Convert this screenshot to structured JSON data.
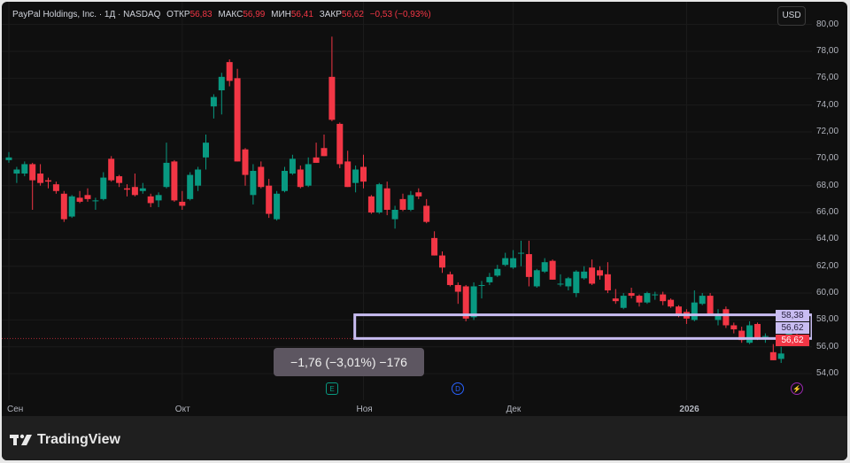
{
  "header": {
    "symbol": "PayPal Holdings, Inc. · 1Д · NASDAQ",
    "open_label": "ОТКР",
    "open": "56,83",
    "high_label": "МАКС",
    "high": "56,99",
    "low_label": "МИН",
    "low": "56,41",
    "close_label": "ЗАКР",
    "close": "56,62",
    "change": "−0,53 (−0,93%)"
  },
  "currency_button": "USD",
  "measure_tooltip": "−1,76 (−3,01%) −176",
  "price_labels": {
    "range_top": "58,38",
    "range_bottom": "56,62",
    "last_price": "56,62"
  },
  "events": [
    {
      "icon": "earnings-icon",
      "glyph": "E",
      "color": "#089981"
    },
    {
      "icon": "dividend-icon",
      "glyph": "D",
      "color": "#2962ff"
    },
    {
      "icon": "lightning-icon",
      "glyph": "⚡",
      "color": "#9c27b0"
    }
  ],
  "branding": "TradingView",
  "chart_data": {
    "type": "candlestick",
    "title": "PayPal Holdings, Inc. · 1Д · NASDAQ",
    "colors": {
      "up": "#089981",
      "down": "#f23645",
      "range_box": "#c9bdf2",
      "last_price_line": "#f23645"
    },
    "y_ticks": [
      "54,00",
      "56,00",
      "58,00",
      "60,00",
      "62,00",
      "64,00",
      "66,00",
      "68,00",
      "70,00",
      "72,00",
      "74,00",
      "76,00",
      "78,00",
      "80,00"
    ],
    "ylim": [
      53,
      80.5
    ],
    "x_ticks": [
      {
        "label": "Сен",
        "bar_index": 0
      },
      {
        "label": "Окт",
        "bar_index": 22
      },
      {
        "label": "Ноя",
        "bar_index": 45
      },
      {
        "label": "Дек",
        "bar_index": 64
      },
      {
        "label": "2026",
        "bar_index": 86
      }
    ],
    "range_box": {
      "from_bar": 43,
      "top": 58.38,
      "bottom": 56.62
    },
    "last_price": 56.62,
    "grid": true,
    "ohlc": [
      [
        69.9,
        70.5,
        69.7,
        70.1
      ],
      [
        68.9,
        69.4,
        68.2,
        69.2
      ],
      [
        68.9,
        69.8,
        68.7,
        69.6
      ],
      [
        69.6,
        69.7,
        66.2,
        68.4
      ],
      [
        68.9,
        69.6,
        68.0,
        68.2
      ],
      [
        68.4,
        68.6,
        67.8,
        68.3
      ],
      [
        68.1,
        68.3,
        67.4,
        67.6
      ],
      [
        67.4,
        67.6,
        65.3,
        65.5
      ],
      [
        65.7,
        67.3,
        65.6,
        67.2
      ],
      [
        67.1,
        67.6,
        66.7,
        66.8
      ],
      [
        67.3,
        67.8,
        66.8,
        67.0
      ],
      [
        66.9,
        67.1,
        66.2,
        66.9
      ],
      [
        67.0,
        69.0,
        66.9,
        68.6
      ],
      [
        70.0,
        70.2,
        68.3,
        68.4
      ],
      [
        68.7,
        68.8,
        67.9,
        68.2
      ],
      [
        67.8,
        68.1,
        67.2,
        67.7
      ],
      [
        67.9,
        68.9,
        67.2,
        67.3
      ],
      [
        67.6,
        68.2,
        67.4,
        67.8
      ],
      [
        67.2,
        67.4,
        66.4,
        66.7
      ],
      [
        66.9,
        67.5,
        66.4,
        67.3
      ],
      [
        67.9,
        71.2,
        67.8,
        69.7
      ],
      [
        69.8,
        69.9,
        66.8,
        66.9
      ],
      [
        66.8,
        67.6,
        66.2,
        66.5
      ],
      [
        67.0,
        69.0,
        66.9,
        68.8
      ],
      [
        68.0,
        69.4,
        67.6,
        69.2
      ],
      [
        70.1,
        71.8,
        69.2,
        71.2
      ],
      [
        73.9,
        74.8,
        73.0,
        74.6
      ],
      [
        75.1,
        76.4,
        73.3,
        76.1
      ],
      [
        77.2,
        77.4,
        75.4,
        75.8
      ],
      [
        76.0,
        76.7,
        69.8,
        69.8
      ],
      [
        70.7,
        70.8,
        68.0,
        68.8
      ],
      [
        67.3,
        69.6,
        66.6,
        69.1
      ],
      [
        69.4,
        69.8,
        67.8,
        67.9
      ],
      [
        68.0,
        68.5,
        65.6,
        65.9
      ],
      [
        65.5,
        67.6,
        65.4,
        67.4
      ],
      [
        67.6,
        69.4,
        67.5,
        69.1
      ],
      [
        68.9,
        70.3,
        68.8,
        70.0
      ],
      [
        69.2,
        69.5,
        67.8,
        67.9
      ],
      [
        68.0,
        70.1,
        67.9,
        69.6
      ],
      [
        70.1,
        71.2,
        69.7,
        69.7
      ],
      [
        70.8,
        71.8,
        70.2,
        70.2
      ],
      [
        76.1,
        79.1,
        72.8,
        72.9
      ],
      [
        72.6,
        72.7,
        69.3,
        69.6
      ],
      [
        69.8,
        70.6,
        67.9,
        67.9
      ],
      [
        68.2,
        69.5,
        67.5,
        69.2
      ],
      [
        69.4,
        70.3,
        67.8,
        68.3
      ],
      [
        67.2,
        67.3,
        65.9,
        66.0
      ],
      [
        66.0,
        68.2,
        65.9,
        68.1
      ],
      [
        67.8,
        68.3,
        65.8,
        66.2
      ],
      [
        65.5,
        66.5,
        64.8,
        66.2
      ],
      [
        67.0,
        67.4,
        66.1,
        66.2
      ],
      [
        66.2,
        67.6,
        66.1,
        67.3
      ],
      [
        67.5,
        67.8,
        67.0,
        67.2
      ],
      [
        66.5,
        67.0,
        65.2,
        65.3
      ],
      [
        64.1,
        64.6,
        62.8,
        62.8
      ],
      [
        62.8,
        63.1,
        61.5,
        61.9
      ],
      [
        61.4,
        61.6,
        60.5,
        60.6
      ],
      [
        60.6,
        60.8,
        59.2,
        60.1
      ],
      [
        60.5,
        60.6,
        57.9,
        58.1
      ],
      [
        58.2,
        60.8,
        58.0,
        60.5
      ],
      [
        60.6,
        60.9,
        59.6,
        60.6
      ],
      [
        60.8,
        61.5,
        60.6,
        61.2
      ],
      [
        61.3,
        62.1,
        61.2,
        61.8
      ],
      [
        62.1,
        63.0,
        62.0,
        62.6
      ],
      [
        61.9,
        63.2,
        61.8,
        62.6
      ],
      [
        63.0,
        63.9,
        62.0,
        63.0
      ],
      [
        62.9,
        63.9,
        60.5,
        61.2
      ],
      [
        60.5,
        61.8,
        60.4,
        61.7
      ],
      [
        61.6,
        62.6,
        61.5,
        62.3
      ],
      [
        62.4,
        62.5,
        61.0,
        61.0
      ],
      [
        60.7,
        61.4,
        60.5,
        60.7
      ],
      [
        60.5,
        61.2,
        60.2,
        61.1
      ],
      [
        60.0,
        61.7,
        59.7,
        61.6
      ],
      [
        61.1,
        62.0,
        61.0,
        61.6
      ],
      [
        61.9,
        62.5,
        60.6,
        60.7
      ],
      [
        61.7,
        62.0,
        61.0,
        61.3
      ],
      [
        61.4,
        62.3,
        60.0,
        60.2
      ],
      [
        59.6,
        60.3,
        59.2,
        59.4
      ],
      [
        58.9,
        60.0,
        58.8,
        59.8
      ],
      [
        60.0,
        60.4,
        59.6,
        59.8
      ],
      [
        59.8,
        59.9,
        59.0,
        59.3
      ],
      [
        59.3,
        60.1,
        59.2,
        60.0
      ],
      [
        59.9,
        60.1,
        59.5,
        59.9
      ],
      [
        59.9,
        60.1,
        59.1,
        59.4
      ],
      [
        59.5,
        59.6,
        58.9,
        59.0
      ],
      [
        59.0,
        59.1,
        58.2,
        58.3
      ],
      [
        58.6,
        58.8,
        57.7,
        58.1
      ],
      [
        58.0,
        60.2,
        57.9,
        59.3
      ],
      [
        59.2,
        60.0,
        59.1,
        59.8
      ],
      [
        59.8,
        60.0,
        58.3,
        58.4
      ],
      [
        58.0,
        58.8,
        57.6,
        58.3
      ],
      [
        58.8,
        59.0,
        57.4,
        57.6
      ],
      [
        57.6,
        57.8,
        57.0,
        57.3
      ],
      [
        57.2,
        57.5,
        56.3,
        56.5
      ],
      [
        56.3,
        57.9,
        56.2,
        57.6
      ],
      [
        57.7,
        57.8,
        56.5,
        56.6
      ],
      [
        56.8,
        57.0,
        56.3,
        56.8
      ],
      [
        55.6,
        56.2,
        55.0,
        55.0
      ],
      [
        55.1,
        56.0,
        54.8,
        55.5
      ],
      [
        56.6,
        57.6,
        56.5,
        57.2
      ],
      [
        56.83,
        56.99,
        56.41,
        56.62
      ]
    ]
  }
}
